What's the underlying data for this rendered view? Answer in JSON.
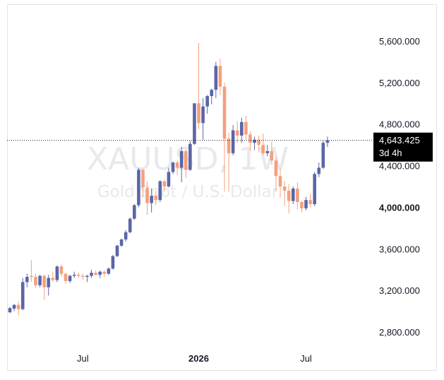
{
  "watermark": {
    "symbol": "XAUUSD, 1W",
    "description": "Gold Spot / U.S. Dollar"
  },
  "price_tag": {
    "value": "4,643.425",
    "countdown": "3d 4h",
    "bg_color": "#000000",
    "line_color": "#131722"
  },
  "colors": {
    "up": "#5b66a6",
    "down": "#f4a07d",
    "background": "#ffffff",
    "border": "#e0e3eb"
  },
  "chart_data": {
    "type": "candlestick",
    "interval": "1W",
    "y_axis": {
      "side": "right",
      "ticks": [
        {
          "value": 2800,
          "label": "2,800.000"
        },
        {
          "value": 3200,
          "label": "3,200.000"
        },
        {
          "value": 3600,
          "label": "3,600.000"
        },
        {
          "value": 4000,
          "label": "4,000.000",
          "bold": true
        },
        {
          "value": 4400,
          "label": "4,400.000"
        },
        {
          "value": 4800,
          "label": "4,800.000"
        },
        {
          "value": 5200,
          "label": "5,200.000"
        },
        {
          "value": 5600,
          "label": "5,600.000"
        }
      ]
    },
    "x_axis": {
      "ticks": [
        {
          "index": 17,
          "label": "Jul",
          "bold": false
        },
        {
          "index": 44,
          "label": "2026",
          "bold": true
        },
        {
          "index": 69,
          "label": "Jul",
          "bold": false
        }
      ]
    },
    "grid": false,
    "candles": [
      [
        2990,
        3040,
        2980,
        3030
      ],
      [
        3025,
        3070,
        3000,
        3060
      ],
      [
        3060,
        3090,
        2960,
        3020
      ],
      [
        3020,
        3320,
        3010,
        3280
      ],
      [
        3280,
        3360,
        3230,
        3330
      ],
      [
        3340,
        3490,
        3280,
        3330
      ],
      [
        3330,
        3360,
        3230,
        3250
      ],
      [
        3250,
        3350,
        3230,
        3340
      ],
      [
        3340,
        3350,
        3110,
        3230
      ],
      [
        3230,
        3350,
        3150,
        3320
      ],
      [
        3320,
        3380,
        3280,
        3300
      ],
      [
        3300,
        3440,
        3280,
        3430
      ],
      [
        3430,
        3450,
        3330,
        3360
      ],
      [
        3360,
        3370,
        3260,
        3290
      ],
      [
        3290,
        3350,
        3270,
        3340
      ],
      [
        3340,
        3380,
        3320,
        3350
      ],
      [
        3350,
        3370,
        3320,
        3340
      ],
      [
        3340,
        3360,
        3300,
        3330
      ],
      [
        3330,
        3350,
        3280,
        3340
      ],
      [
        3340,
        3400,
        3320,
        3370
      ],
      [
        3370,
        3390,
        3340,
        3350
      ],
      [
        3350,
        3390,
        3320,
        3380
      ],
      [
        3380,
        3390,
        3330,
        3360
      ],
      [
        3360,
        3420,
        3350,
        3410
      ],
      [
        3410,
        3540,
        3400,
        3530
      ],
      [
        3530,
        3640,
        3520,
        3630
      ],
      [
        3630,
        3700,
        3620,
        3690
      ],
      [
        3690,
        3780,
        3670,
        3760
      ],
      [
        3760,
        3900,
        3750,
        3890
      ],
      [
        3890,
        4030,
        3880,
        4020
      ],
      [
        4020,
        4380,
        4000,
        4360
      ],
      [
        4360,
        4370,
        4100,
        4190
      ],
      [
        4190,
        4250,
        3930,
        4040
      ],
      [
        4040,
        4180,
        3950,
        4110
      ],
      [
        4110,
        4160,
        4020,
        4070
      ],
      [
        4070,
        4260,
        4050,
        4250
      ],
      [
        4250,
        4260,
        4150,
        4200
      ],
      [
        4200,
        4380,
        4190,
        4340
      ],
      [
        4340,
        4440,
        4320,
        4430
      ],
      [
        4430,
        4450,
        4310,
        4380
      ],
      [
        4380,
        4580,
        4240,
        4540
      ],
      [
        4540,
        4560,
        4280,
        4360
      ],
      [
        4360,
        4640,
        4350,
        4610
      ],
      [
        4610,
        5000,
        4600,
        5000
      ],
      [
        5000,
        5580,
        4750,
        4810
      ],
      [
        4810,
        5050,
        4650,
        4970
      ],
      [
        4970,
        5080,
        4900,
        5070
      ],
      [
        5070,
        5140,
        4990,
        5130
      ],
      [
        5130,
        5400,
        5050,
        5360
      ],
      [
        5360,
        5430,
        5080,
        5160
      ],
      [
        5160,
        5200,
        4150,
        4660
      ],
      [
        4660,
        4720,
        4150,
        4520
      ],
      [
        4520,
        4790,
        4500,
        4740
      ],
      [
        4740,
        4830,
        4620,
        4690
      ],
      [
        4690,
        4860,
        4620,
        4820
      ],
      [
        4820,
        4880,
        4650,
        4700
      ],
      [
        4700,
        4730,
        4540,
        4620
      ],
      [
        4620,
        4680,
        4550,
        4650
      ],
      [
        4650,
        4690,
        4530,
        4600
      ],
      [
        4600,
        4710,
        4500,
        4520
      ],
      [
        4520,
        4600,
        4490,
        4540
      ],
      [
        4540,
        4630,
        4410,
        4450
      ],
      [
        4450,
        4480,
        4150,
        4300
      ],
      [
        4300,
        4370,
        4090,
        4200
      ],
      [
        4200,
        4250,
        4010,
        4160
      ],
      [
        4160,
        4220,
        3940,
        4060
      ],
      [
        4060,
        4200,
        4030,
        4180
      ],
      [
        4180,
        4240,
        3980,
        4050
      ],
      [
        4050,
        4060,
        3950,
        3990
      ],
      [
        3990,
        4100,
        3970,
        4070
      ],
      [
        4070,
        4130,
        4000,
        4030
      ],
      [
        4030,
        4340,
        4010,
        4320
      ],
      [
        4320,
        4430,
        4290,
        4380
      ],
      [
        4380,
        4640,
        4370,
        4620
      ],
      [
        4620,
        4680,
        4580,
        4643.425
      ]
    ]
  }
}
